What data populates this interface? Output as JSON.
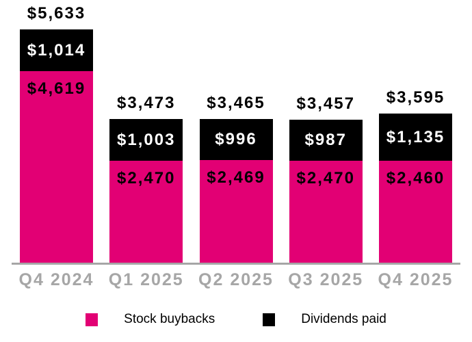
{
  "chart_data": {
    "type": "bar",
    "stacked": true,
    "title": "",
    "xlabel": "",
    "ylabel": "",
    "ylim": [
      0,
      5633
    ],
    "grid": false,
    "legend_position": "bottom",
    "categories": [
      "Q4 2024",
      "Q1 2025",
      "Q2 2025",
      "Q3 2025",
      "Q4 2025"
    ],
    "series": [
      {
        "name": "Stock buybacks",
        "color": "#E20074",
        "values": [
          4619,
          2470,
          2469,
          2470,
          2460
        ],
        "labels": [
          "$4,619",
          "$2,470",
          "$2,469",
          "$2,470",
          "$2,460"
        ]
      },
      {
        "name": "Dividends paid",
        "color": "#000000",
        "values": [
          1014,
          1003,
          996,
          987,
          1135
        ],
        "labels": [
          "$1,014",
          "$1,003",
          "$996",
          "$987",
          "$1,135"
        ]
      }
    ],
    "totals": [
      5633,
      3473,
      3465,
      3457,
      3595
    ],
    "total_labels": [
      "$5,633",
      "$3,473",
      "$3,465",
      "$3,457",
      "$3,595"
    ],
    "colors": {
      "axis_line": "#A6A6A6",
      "axis_label": "#A6A6A6",
      "total_label": "#000000",
      "background": "#FFFFFF"
    }
  }
}
